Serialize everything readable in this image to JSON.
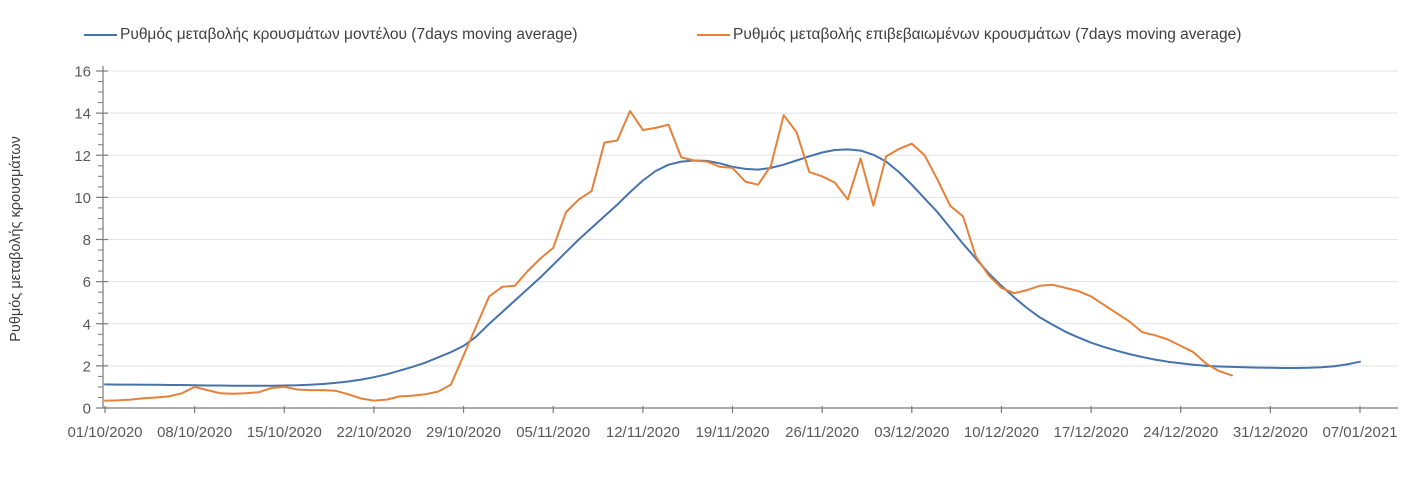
{
  "y_axis_title": "Ρυθμός μεταβολής κρουσμάτων",
  "colors": {
    "model_line": "#4673ab",
    "confirmed_line": "#e6813a",
    "gridline": "#e3e3e3",
    "axis": "#7a7a7a",
    "tick_text": "#595959",
    "legend_text": "#404040",
    "background": "#ffffff"
  },
  "chart_data": {
    "type": "line",
    "title": "",
    "xlabel": "",
    "ylabel": "Ρυθμός μεταβολής κρουσμάτων",
    "grid": "horizontal",
    "legend_position": "top",
    "ylim": [
      0,
      16
    ],
    "y_ticks": [
      0,
      2,
      4,
      6,
      8,
      10,
      12,
      14,
      16
    ],
    "x_tick_labels": [
      "01/10/2020",
      "08/10/2020",
      "15/10/2020",
      "22/10/2020",
      "29/10/2020",
      "05/11/2020",
      "12/11/2020",
      "19/11/2020",
      "26/11/2020",
      "03/12/2020",
      "10/12/2020",
      "17/12/2020",
      "24/12/2020",
      "31/12/2020",
      "07/01/2021"
    ],
    "x_tick_days": [
      0,
      7,
      14,
      21,
      28,
      35,
      42,
      49,
      56,
      63,
      70,
      77,
      84,
      91,
      98
    ],
    "x_range_days": [
      0,
      98
    ],
    "series": [
      {
        "key": "model",
        "name": "Ρυθμός μεταβολής κρουσμάτων μοντέλου (7days moving average)",
        "color": "#4673ab",
        "start_day": 0,
        "values": [
          1.12,
          1.11,
          1.11,
          1.1,
          1.1,
          1.09,
          1.09,
          1.08,
          1.07,
          1.07,
          1.06,
          1.06,
          1.06,
          1.06,
          1.07,
          1.08,
          1.1,
          1.14,
          1.19,
          1.26,
          1.35,
          1.46,
          1.6,
          1.77,
          1.95,
          2.15,
          2.4,
          2.65,
          2.95,
          3.4,
          4.0,
          4.55,
          5.1,
          5.65,
          6.2,
          6.8,
          7.4,
          8.0,
          8.55,
          9.1,
          9.65,
          10.25,
          10.8,
          11.25,
          11.55,
          11.7,
          11.75,
          11.73,
          11.62,
          11.45,
          11.35,
          11.32,
          11.4,
          11.55,
          11.75,
          11.95,
          12.13,
          12.25,
          12.28,
          12.22,
          12.02,
          11.7,
          11.2,
          10.6,
          9.95,
          9.3,
          8.55,
          7.8,
          7.1,
          6.4,
          5.8,
          5.25,
          4.75,
          4.3,
          3.95,
          3.62,
          3.35,
          3.1,
          2.9,
          2.72,
          2.56,
          2.42,
          2.3,
          2.2,
          2.12,
          2.05,
          2.0,
          1.97,
          1.95,
          1.93,
          1.92,
          1.91,
          1.9,
          1.9,
          1.91,
          1.93,
          1.98,
          2.07,
          2.2
        ]
      },
      {
        "key": "confirmed",
        "name": "Ρυθμός μεταβολής επιβεβαιωμένων κρουσμάτων (7days moving average)",
        "color": "#e6813a",
        "start_day": 0,
        "values": [
          0.35,
          0.36,
          0.4,
          0.46,
          0.5,
          0.55,
          0.7,
          1.0,
          0.85,
          0.7,
          0.68,
          0.7,
          0.75,
          0.95,
          1.0,
          0.88,
          0.85,
          0.85,
          0.82,
          0.65,
          0.45,
          0.35,
          0.4,
          0.55,
          0.58,
          0.65,
          0.78,
          1.1,
          2.5,
          3.9,
          5.3,
          5.75,
          5.8,
          6.5,
          7.1,
          7.6,
          9.3,
          9.9,
          10.3,
          12.6,
          12.7,
          14.1,
          13.2,
          13.3,
          13.45,
          11.9,
          11.75,
          11.7,
          11.45,
          11.4,
          10.75,
          10.6,
          11.5,
          13.9,
          13.1,
          11.2,
          11.0,
          10.7,
          9.9,
          11.85,
          9.6,
          11.95,
          12.3,
          12.55,
          12.0,
          10.85,
          9.6,
          9.1,
          7.2,
          6.3,
          5.7,
          5.45,
          5.6,
          5.8,
          5.85,
          5.7,
          5.55,
          5.3,
          4.9,
          4.5,
          4.1,
          3.6,
          3.45,
          3.25,
          2.95,
          2.65,
          2.1,
          1.75,
          1.55
        ]
      }
    ]
  }
}
